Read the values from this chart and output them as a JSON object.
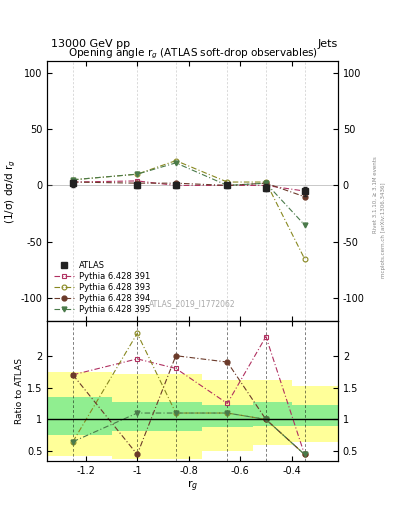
{
  "title_top": "13000 GeV pp",
  "title_right": "Jets",
  "plot_title": "Opening angle r$_g$ (ATLAS soft-drop observables)",
  "xlabel": "r$_g$",
  "ylabel_main": "(1/σ) dσ/d r$_g$",
  "ylabel_ratio": "Ratio to ATLAS",
  "watermark": "ATLAS_2019_I1772062",
  "right_label": "Rivet 3.1.10, ≥ 3.1M events",
  "right_label2": "mcplots.cern.ch [arXiv:1306.3436]",
  "xlim": [
    -1.35,
    -0.22
  ],
  "ylim_main": [
    -120,
    110
  ],
  "ylim_ratio": [
    0.35,
    2.55
  ],
  "x_data": [
    -1.25,
    -1.0,
    -0.85,
    -0.65,
    -0.5,
    -0.35
  ],
  "atlas_y": [
    2.0,
    0.0,
    0.0,
    0.0,
    -2.0,
    -5.0
  ],
  "atlas_yerr": [
    3.0,
    2.0,
    2.0,
    2.0,
    3.0,
    4.0
  ],
  "p391_y": [
    3.0,
    4.0,
    0.0,
    0.0,
    0.0,
    -5.0
  ],
  "p393_y": [
    5.0,
    10.0,
    22.0,
    3.0,
    3.0,
    -65.0
  ],
  "p394_y": [
    3.0,
    2.0,
    2.0,
    0.0,
    2.0,
    -10.0
  ],
  "p395_y": [
    5.0,
    10.0,
    20.0,
    0.0,
    2.0,
    -35.0
  ],
  "ratio_x": [
    -1.25,
    -1.0,
    -0.85,
    -0.65,
    -0.5,
    -0.35
  ],
  "ratio_391": [
    1.7,
    1.95,
    1.8,
    1.25,
    2.3,
    0.45
  ],
  "ratio_393": [
    0.65,
    2.35,
    1.1,
    1.1,
    1.0,
    0.45
  ],
  "ratio_394": [
    1.7,
    0.45,
    2.0,
    1.9,
    1.0,
    0.45
  ],
  "ratio_395": [
    0.65,
    1.1,
    1.1,
    1.1,
    1.0,
    0.45
  ],
  "band_edges": [
    -1.35,
    -1.1,
    -0.75,
    -0.55,
    -0.4,
    -0.22
  ],
  "band_green_lo": [
    0.75,
    0.82,
    0.88,
    0.9,
    0.9,
    0.9
  ],
  "band_green_hi": [
    1.35,
    1.28,
    1.22,
    1.28,
    1.22,
    1.22
  ],
  "band_yellow_lo": [
    0.42,
    0.38,
    0.5,
    0.6,
    0.65,
    0.65
  ],
  "band_yellow_hi": [
    1.75,
    1.72,
    1.62,
    1.62,
    1.52,
    1.52
  ],
  "color_atlas": "#222222",
  "color_391": "#b03060",
  "color_393": "#888820",
  "color_394": "#6b3a2a",
  "color_395": "#4a7a4a",
  "color_green": "#90ee90",
  "color_yellow": "#ffff99",
  "yticks_main": [
    -100,
    -50,
    0,
    50,
    100
  ],
  "yticks_ratio": [
    0.5,
    1.0,
    1.5,
    2.0
  ],
  "xticks": [
    -1.2,
    -1.0,
    -0.8,
    -0.6,
    -0.4
  ],
  "xtick_labels": [
    "-1.2",
    "-1",
    "-0.8",
    "-0.6",
    "-0.4"
  ]
}
